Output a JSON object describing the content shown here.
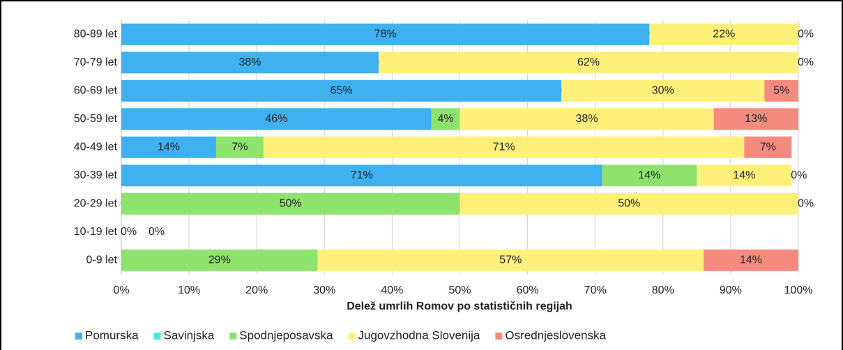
{
  "chart_data": {
    "type": "stacked_barh",
    "xlabel": "Delež umrlih Romov po statističnih regijah",
    "categories": [
      "80-89 let",
      "70-79 let",
      "60-69 let",
      "50-59 let",
      "40-49 let",
      "30-39 let",
      "20-29 let",
      "10-19 let",
      "0-9 let"
    ],
    "series": [
      {
        "name": "Pomurska",
        "color": "#3fb0f0",
        "values": [
          78,
          38,
          65,
          45.8,
          14,
          71,
          0,
          0,
          null
        ],
        "value_labels": [
          "78%",
          "38%",
          "65%",
          "46%",
          "14%",
          "71%",
          "0%",
          "0%",
          null
        ]
      },
      {
        "name": "Savinjska",
        "color": "#4fe6df",
        "values": [
          null,
          null,
          null,
          null,
          null,
          null,
          null,
          null,
          null
        ],
        "value_labels": [
          null,
          null,
          null,
          null,
          null,
          null,
          null,
          null,
          null
        ]
      },
      {
        "name": "Spodnjeposavska",
        "color": "#8ee36e",
        "values": [
          0,
          0,
          0,
          4.2,
          7,
          14,
          50,
          0,
          29
        ],
        "value_labels": [
          "0%",
          "0%",
          "0%",
          "4%",
          "7%",
          "14%",
          "50%",
          "0%",
          "29%"
        ]
      },
      {
        "name": "Jugovzhodna Slovenija",
        "color": "#fff07a",
        "values": [
          22,
          62,
          30,
          37.5,
          71,
          14,
          50,
          null,
          57
        ],
        "value_labels": [
          "22%",
          "62%",
          "30%",
          "38%",
          "71%",
          "14%",
          "50%",
          null,
          "57%"
        ]
      },
      {
        "name": "Osrednjeslovenska",
        "color": "#f58a7e",
        "values": [
          0,
          0,
          5,
          12.5,
          7,
          0,
          0,
          null,
          14
        ],
        "value_labels": [
          "0%",
          "0%",
          "5%",
          "13%",
          "7%",
          "0%",
          "0%",
          null,
          "14%"
        ]
      }
    ],
    "xlim": [
      0,
      100
    ],
    "xticks": [
      {
        "value": 0,
        "label": "0%"
      },
      {
        "value": 10,
        "label": "10%"
      },
      {
        "value": 20,
        "label": "20%"
      },
      {
        "value": 30,
        "label": "30%"
      },
      {
        "value": 40,
        "label": "40%"
      },
      {
        "value": 50,
        "label": "50%"
      },
      {
        "value": 60,
        "label": "60%"
      },
      {
        "value": 70,
        "label": "70%"
      },
      {
        "value": 80,
        "label": "80%"
      },
      {
        "value": 90,
        "label": "90%"
      },
      {
        "value": 100,
        "label": "100%"
      }
    ],
    "grid": true
  }
}
